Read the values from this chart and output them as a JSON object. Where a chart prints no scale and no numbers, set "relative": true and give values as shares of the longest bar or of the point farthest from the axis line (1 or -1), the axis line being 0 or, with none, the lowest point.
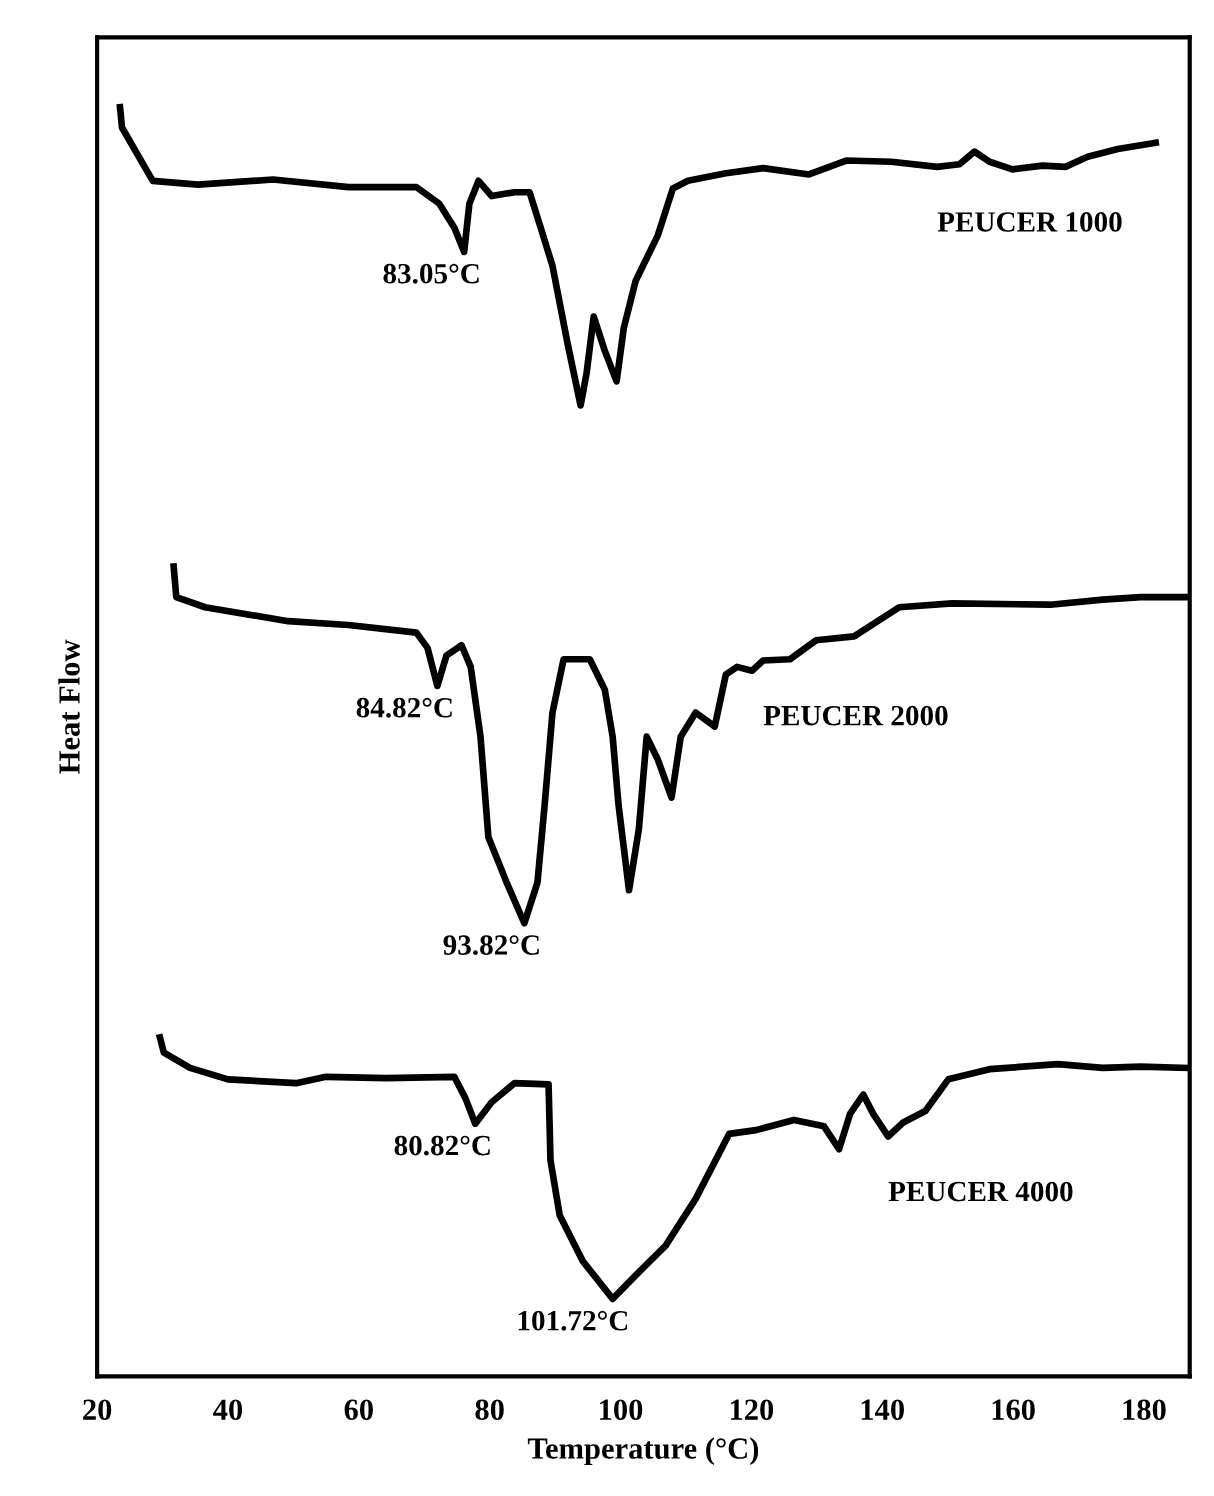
{
  "chart_data": {
    "type": "line",
    "relative": true,
    "xlabel": "Temperature (°C)",
    "ylabel": "Heat Flow",
    "xlim": [
      20,
      187
    ],
    "xticks": [
      20,
      40,
      60,
      80,
      100,
      120,
      140,
      160,
      180
    ],
    "grid": false,
    "legend": false,
    "marker": "none",
    "line_style": "solid",
    "series": [
      {
        "name": "PEUCER 1000",
        "color": "#000000",
        "x": [
          23.5,
          23.8,
          28.5,
          35.4,
          46.9,
          58.4,
          68.8,
          72.3,
          74.6,
          76.1,
          76.9,
          78.3,
          80.3,
          83.8,
          86.1,
          87.8,
          89.6,
          91.9,
          93.9,
          94.8,
          95.9,
          97.6,
          99.4,
          100.5,
          102.3,
          105.7,
          108.0,
          110.3,
          116.1,
          121.8,
          128.8,
          134.5,
          141.4,
          148.4,
          151.8,
          154.1,
          156.4,
          159.9,
          164.5,
          168.0,
          171.4,
          176.0,
          181.8
        ],
        "values": [
          1.0,
          0.984,
          0.942,
          0.939,
          0.943,
          0.937,
          0.937,
          0.924,
          0.905,
          0.886,
          0.924,
          0.942,
          0.93,
          0.933,
          0.933,
          0.905,
          0.875,
          0.814,
          0.765,
          0.79,
          0.835,
          0.808,
          0.784,
          0.826,
          0.863,
          0.899,
          0.936,
          0.942,
          0.948,
          0.952,
          0.947,
          0.958,
          0.957,
          0.953,
          0.955,
          0.965,
          0.957,
          0.951,
          0.954,
          0.953,
          0.961,
          0.967,
          0.972
        ]
      },
      {
        "name": "PEUCER 2000",
        "color": "#000000",
        "x": [
          31.7,
          32.1,
          36.5,
          49.2,
          58.4,
          68.8,
          70.5,
          72.0,
          73.4,
          75.7,
          77.1,
          78.6,
          79.8,
          82.6,
          85.3,
          87.3,
          88.4,
          89.6,
          91.3,
          95.3,
          97.6,
          98.8,
          99.7,
          101.3,
          102.8,
          104.0,
          105.7,
          107.8,
          109.2,
          111.5,
          114.4,
          116.1,
          117.8,
          120.1,
          121.8,
          125.9,
          129.9,
          135.7,
          142.6,
          150.7,
          165.7,
          173.7,
          179.5,
          186.4
        ],
        "values": [
          0.638,
          0.614,
          0.606,
          0.595,
          0.592,
          0.586,
          0.574,
          0.544,
          0.568,
          0.576,
          0.559,
          0.504,
          0.425,
          0.389,
          0.357,
          0.389,
          0.45,
          0.523,
          0.565,
          0.565,
          0.541,
          0.504,
          0.45,
          0.383,
          0.431,
          0.504,
          0.486,
          0.456,
          0.504,
          0.523,
          0.512,
          0.553,
          0.559,
          0.556,
          0.564,
          0.565,
          0.58,
          0.583,
          0.606,
          0.609,
          0.608,
          0.612,
          0.614,
          0.614
        ]
      },
      {
        "name": "PEUCER 4000",
        "color": "#000000",
        "x": [
          29.6,
          30.2,
          34.2,
          40.0,
          50.4,
          55.0,
          64.2,
          74.6,
          76.3,
          77.8,
          80.3,
          83.8,
          89.0,
          89.3,
          90.7,
          94.2,
          98.8,
          102.2,
          106.9,
          111.5,
          116.6,
          120.7,
          126.5,
          131.1,
          133.4,
          135.1,
          137.1,
          138.6,
          140.9,
          143.2,
          146.6,
          150.1,
          156.4,
          166.8,
          173.7,
          179.5,
          186.4
        ],
        "values": [
          0.267,
          0.255,
          0.243,
          0.234,
          0.231,
          0.236,
          0.235,
          0.236,
          0.219,
          0.199,
          0.216,
          0.231,
          0.23,
          0.17,
          0.127,
          0.091,
          0.061,
          0.079,
          0.103,
          0.14,
          0.191,
          0.194,
          0.202,
          0.197,
          0.179,
          0.207,
          0.222,
          0.207,
          0.189,
          0.2,
          0.209,
          0.234,
          0.242,
          0.246,
          0.243,
          0.244,
          0.243
        ]
      }
    ],
    "annotations": [
      {
        "text": "83.05°C",
        "x": 76.1,
        "y": 0.886
      },
      {
        "text": "84.82°C",
        "x": 72.0,
        "y": 0.544
      },
      {
        "text": "93.82°C",
        "x": 85.3,
        "y": 0.357
      },
      {
        "text": "80.82°C",
        "x": 77.8,
        "y": 0.199
      },
      {
        "text": "101.72°C",
        "x": 98.8,
        "y": 0.061
      }
    ]
  }
}
